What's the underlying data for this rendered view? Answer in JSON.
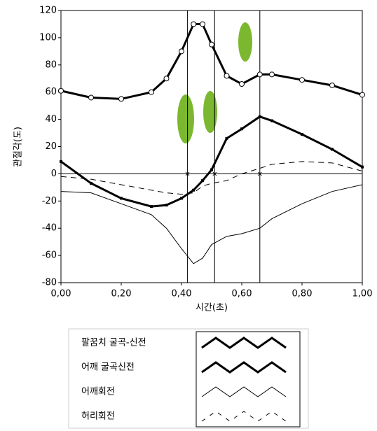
{
  "chart_data": {
    "type": "line",
    "ylabel": "관절각(도)",
    "xlabel": "시간(초)",
    "x": [
      0,
      0.1,
      0.2,
      0.3,
      0.35,
      0.4,
      0.44,
      0.47,
      0.5,
      0.55,
      0.6,
      0.66,
      0.7,
      0.8,
      0.9,
      1.0
    ],
    "series": [
      {
        "name": "팔꿈치 굴곡-신전",
        "color": "#000000",
        "marker": "circle",
        "values": [
          61,
          56,
          55,
          60,
          70,
          90,
          110,
          110,
          95,
          72,
          66,
          73,
          73,
          69,
          65,
          58
        ]
      },
      {
        "name": "어깨 굴곡신전",
        "color": "#000000",
        "marker": "square",
        "values": [
          9,
          -7,
          -18,
          -24,
          -23,
          -18,
          -12,
          -5,
          3,
          26,
          33,
          42,
          39,
          29,
          18,
          5
        ]
      },
      {
        "name": "어깨회전",
        "color": "#000000",
        "marker": "none",
        "values": [
          -13,
          -14,
          -22,
          -30,
          -40,
          -55,
          -66,
          -62,
          -52,
          -46,
          -44,
          -40,
          -33,
          -22,
          -13,
          -8
        ]
      },
      {
        "name": "허리회전",
        "color": "#000000",
        "marker": "dash",
        "values": [
          -2,
          -4,
          -8,
          -12,
          -14,
          -15,
          -14,
          -9,
          -7,
          -5,
          0,
          4,
          7,
          9,
          8,
          2
        ]
      }
    ],
    "vlines": [
      0.42,
      0.51,
      0.66
    ],
    "hline": 0,
    "xlim": [
      0,
      1
    ],
    "ylim": [
      -80,
      120
    ],
    "xticks": [
      {
        "value": 0,
        "label": "0,00"
      },
      {
        "value": 0.2,
        "label": "0,20"
      },
      {
        "value": 0.4,
        "label": "0,40"
      },
      {
        "value": 0.6,
        "label": "0,60"
      },
      {
        "value": 0.8,
        "label": "0,80"
      },
      {
        "value": 1,
        "label": "1,00"
      }
    ],
    "yticks": [
      -80,
      -60,
      -40,
      -20,
      0,
      20,
      40,
      60,
      80,
      100,
      120
    ]
  }
}
